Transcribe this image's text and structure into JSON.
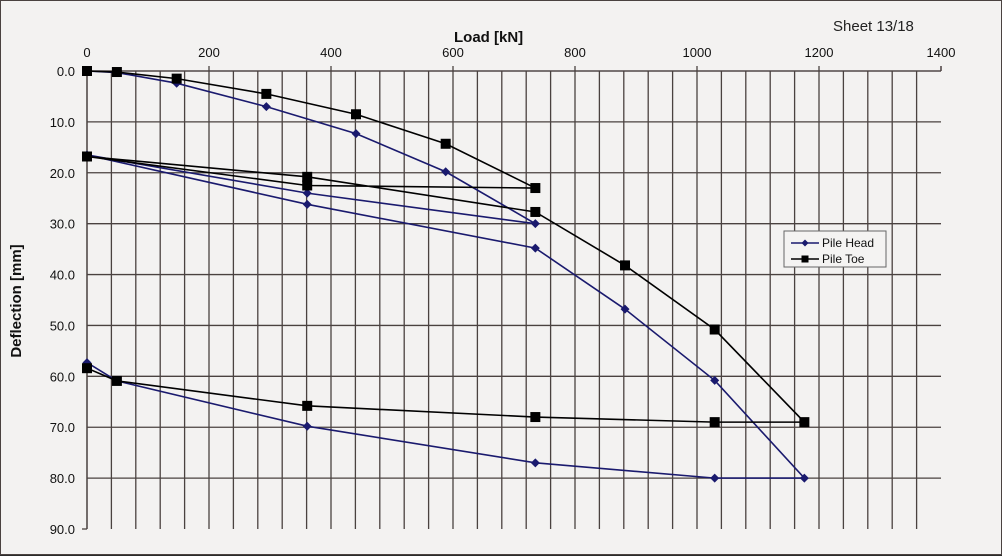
{
  "sheet_label": "Sheet 13/18",
  "chart_data": {
    "type": "line",
    "title": "",
    "xlabel": "Load [kN]",
    "ylabel": "Deflection [mm]",
    "xlim": [
      0,
      1400
    ],
    "ylim": [
      0,
      90
    ],
    "y_inverted": true,
    "x_axis_position": "top",
    "x_ticks": [
      0,
      200,
      400,
      600,
      800,
      1000,
      1200,
      1400
    ],
    "y_ticks": [
      "0.0",
      "10.0",
      "20.0",
      "30.0",
      "40.0",
      "50.0",
      "60.0",
      "70.0",
      "80.0",
      "90.0"
    ],
    "grid": true,
    "x_grid_step": 40,
    "y_grid_step": 10,
    "legend_position": "right",
    "series": [
      {
        "name": "Pile Head",
        "color": "#1a1a6e",
        "marker": "diamond",
        "x": [
          0,
          49,
          147,
          294,
          441,
          588,
          735,
          361,
          0,
          361,
          735,
          882,
          1029,
          1176,
          1029,
          735,
          361,
          49,
          0
        ],
        "y": [
          0,
          0.3,
          2.4,
          7.0,
          12.3,
          19.8,
          30.0,
          24.0,
          16.5,
          26.2,
          34.8,
          46.8,
          60.8,
          80.0,
          80.0,
          77.0,
          69.8,
          60.9,
          57.3
        ]
      },
      {
        "name": "Pile Toe",
        "color": "#000000",
        "marker": "square",
        "x": [
          0,
          49,
          147,
          294,
          441,
          588,
          735,
          361,
          0,
          361,
          735,
          882,
          1029,
          1176,
          1029,
          735,
          361,
          49,
          0
        ],
        "y": [
          0,
          0.2,
          1.5,
          4.5,
          8.5,
          14.3,
          23.0,
          22.5,
          16.8,
          20.8,
          27.7,
          38.2,
          50.8,
          69.0,
          69.0,
          68.0,
          65.8,
          60.9,
          58.4
        ]
      }
    ]
  }
}
